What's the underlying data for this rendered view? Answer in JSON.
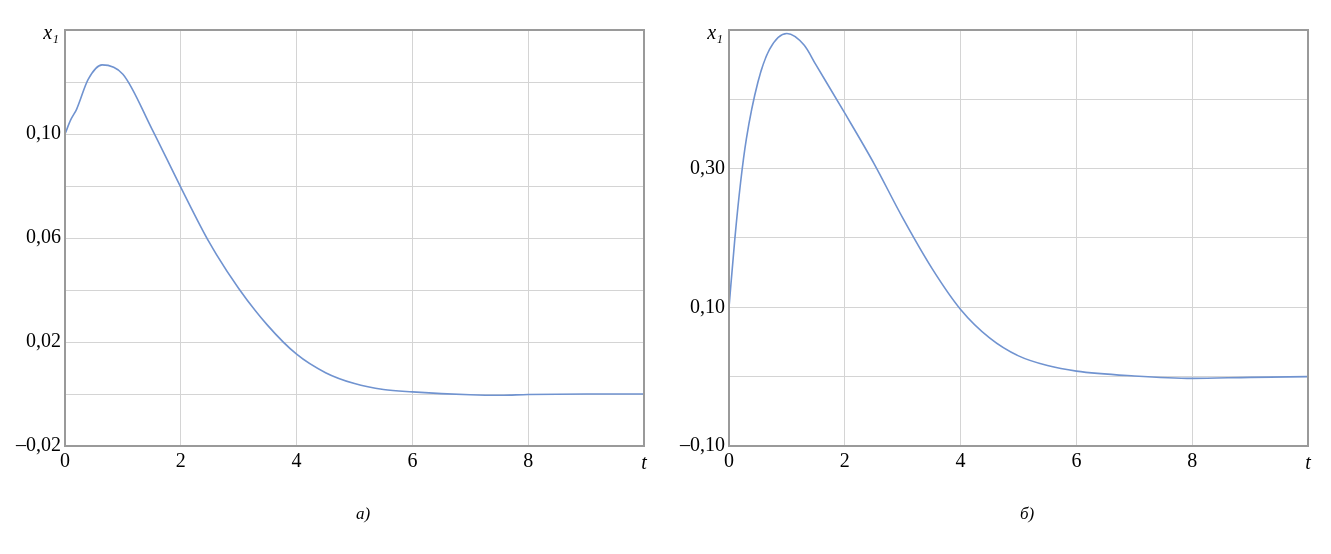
{
  "chart_data": [
    {
      "type": "line",
      "ylabel": "x₁",
      "xlabel": "t",
      "annotations": [
        "а)"
      ],
      "xlim": [
        0,
        10
      ],
      "ylim": [
        -0.02,
        0.14
      ],
      "xticks": [
        0,
        2,
        4,
        6,
        8
      ],
      "yticks": [
        {
          "value": -0.02,
          "label": "–0,02"
        },
        {
          "value": 0,
          "label": null
        },
        {
          "value": 0.02,
          "label": "0,02"
        },
        {
          "value": 0.04,
          "label": null
        },
        {
          "value": 0.06,
          "label": "0,06"
        },
        {
          "value": 0.08,
          "label": null
        },
        {
          "value": 0.1,
          "label": "0,10"
        },
        {
          "value": 0.12,
          "label": null
        }
      ],
      "grid": true,
      "x": [
        0,
        0.1,
        0.2,
        0.4,
        0.64,
        1,
        1.5,
        2,
        2.5,
        3,
        3.5,
        4,
        4.5,
        5,
        5.5,
        6,
        7,
        7.5,
        8,
        9,
        10
      ],
      "series": [
        {
          "color": "#7093d0",
          "values": [
            0.1,
            0.1055,
            0.1095,
            0.121,
            0.1266,
            0.123,
            0.102,
            0.0795,
            0.058,
            0.0406,
            0.0264,
            0.0153,
            0.0082,
            0.004,
            0.0017,
            0.0008,
            -0.0003,
            -0.0005,
            -0.0002,
            0,
            0
          ]
        }
      ]
    },
    {
      "type": "line",
      "ylabel": "x₁",
      "xlabel": "t",
      "annotations": [
        "б)"
      ],
      "xlim": [
        0,
        10
      ],
      "ylim": [
        -0.1,
        0.5
      ],
      "xticks": [
        0,
        2,
        4,
        6,
        8
      ],
      "yticks": [
        {
          "value": -0.1,
          "label": "–0,10"
        },
        {
          "value": 0,
          "label": null
        },
        {
          "value": 0.1,
          "label": "0,10"
        },
        {
          "value": 0.2,
          "label": null
        },
        {
          "value": 0.3,
          "label": "0,30"
        },
        {
          "value": 0.4,
          "label": null
        }
      ],
      "grid": true,
      "x": [
        0,
        0.1,
        0.2,
        0.3,
        0.5,
        0.7,
        1,
        1.3,
        1.5,
        2,
        2.5,
        3,
        3.5,
        4,
        4.5,
        5,
        5.5,
        6,
        7,
        8,
        9,
        10
      ],
      "series": [
        {
          "color": "#7093d0",
          "values": [
            0.1,
            0.198,
            0.28,
            0.343,
            0.425,
            0.472,
            0.495,
            0.478,
            0.45,
            0.38,
            0.308,
            0.229,
            0.157,
            0.097,
            0.056,
            0.03,
            0.016,
            0.008,
            0.001,
            -0.0025,
            -0.001,
            0
          ]
        }
      ]
    }
  ]
}
